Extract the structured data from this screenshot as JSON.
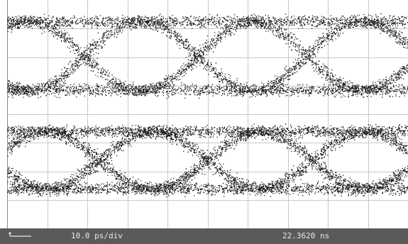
{
  "status_bar": {
    "timebase": "10.0 ps/div",
    "position": "22.3620 ns"
  }
}
